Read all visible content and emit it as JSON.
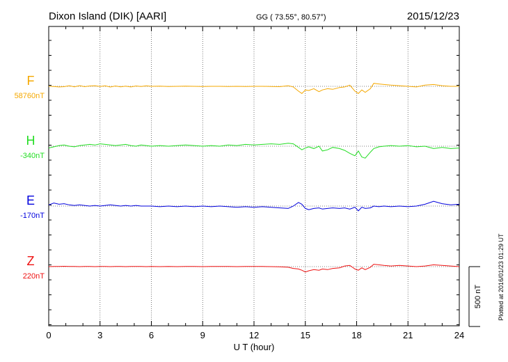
{
  "header": {
    "station": "Dixon Island (DIK)  [AARI]",
    "coords": "GG ( 73.55°,  80.57°)",
    "date": "2015/12/23"
  },
  "footer": {
    "plotted": "Plotted at 2016/01/23 01:29 UT"
  },
  "chart_data": {
    "type": "line",
    "xlabel": "U T (hour)",
    "ylabel": "",
    "xlim": [
      0,
      24
    ],
    "x_ticks": [
      "0",
      "3",
      "6",
      "9",
      "12",
      "15",
      "18",
      "21",
      "24"
    ],
    "scale_bar": {
      "label": "500 nT",
      "value_nT": 500
    },
    "grid": true,
    "series": [
      {
        "name": "F",
        "baseline_label": "58760nT",
        "color": "#f5a800",
        "x": [
          0,
          0.3,
          0.6,
          0.9,
          1.2,
          1.5,
          1.8,
          2.1,
          2.4,
          2.7,
          3.0,
          3.3,
          3.6,
          3.9,
          4.2,
          4.5,
          4.8,
          5.1,
          5.4,
          5.7,
          6.0,
          6.5,
          7,
          7.5,
          8,
          8.5,
          9,
          9.5,
          10,
          10.5,
          11,
          11.5,
          12,
          12.5,
          13,
          13.5,
          14,
          14.3,
          14.6,
          14.8,
          15,
          15.2,
          15.5,
          15.8,
          16,
          16.3,
          16.6,
          17,
          17.3,
          17.6,
          17.9,
          18.1,
          18.3,
          18.5,
          18.8,
          19,
          19.3,
          19.6,
          20,
          20.5,
          21,
          21.5,
          22,
          22.5,
          23,
          23.5,
          24
        ],
        "y": [
          0,
          -2,
          -5,
          -3,
          5,
          -4,
          6,
          -3,
          3,
          5,
          -2,
          4,
          -6,
          3,
          -4,
          2,
          -5,
          3,
          -2,
          4,
          0,
          1,
          -1,
          0,
          1,
          0,
          -1,
          0,
          0,
          -1,
          0,
          -2,
          0,
          0,
          -1,
          -3,
          5,
          -5,
          -40,
          -60,
          -30,
          -35,
          -20,
          -45,
          -30,
          -20,
          -25,
          -10,
          -5,
          10,
          -40,
          -60,
          -30,
          -50,
          -20,
          25,
          20,
          15,
          10,
          5,
          0,
          -5,
          10,
          15,
          5,
          0,
          0
        ]
      },
      {
        "name": "H",
        "baseline_label": "-340nT",
        "color": "#22dd22",
        "x": [
          0,
          0.3,
          0.6,
          0.9,
          1.2,
          1.5,
          1.8,
          2.1,
          2.4,
          2.7,
          3.0,
          3.3,
          3.6,
          3.9,
          4.2,
          4.5,
          4.8,
          5.1,
          5.4,
          5.7,
          6.0,
          6.5,
          7,
          7.5,
          8,
          8.5,
          9,
          9.5,
          10,
          10.5,
          11,
          11.5,
          12,
          12.5,
          13,
          13.5,
          14,
          14.3,
          14.6,
          14.8,
          15,
          15.2,
          15.5,
          15.8,
          16,
          16.3,
          16.6,
          17,
          17.3,
          17.6,
          17.9,
          18.1,
          18.3,
          18.5,
          18.8,
          19,
          19.3,
          19.6,
          20,
          20.5,
          21,
          21.5,
          22,
          22.5,
          23,
          23.5,
          24
        ],
        "y": [
          -15,
          -5,
          5,
          10,
          0,
          -5,
          5,
          10,
          15,
          10,
          20,
          15,
          10,
          5,
          10,
          15,
          5,
          0,
          10,
          5,
          0,
          5,
          0,
          5,
          10,
          5,
          0,
          5,
          0,
          10,
          5,
          15,
          10,
          15,
          20,
          15,
          25,
          20,
          -10,
          -30,
          -15,
          -5,
          -20,
          0,
          -40,
          -30,
          -10,
          -20,
          -35,
          -60,
          -80,
          -40,
          -90,
          -100,
          -50,
          -20,
          -5,
          0,
          5,
          0,
          5,
          -5,
          0,
          -20,
          -10,
          -20,
          -15
        ]
      },
      {
        "name": "E",
        "baseline_label": "-170nT",
        "color": "#0000dd",
        "x": [
          0,
          0.3,
          0.6,
          0.9,
          1.2,
          1.5,
          1.8,
          2.1,
          2.4,
          2.7,
          3.0,
          3.3,
          3.6,
          3.9,
          4.2,
          4.5,
          4.8,
          5.1,
          5.4,
          5.7,
          6.0,
          6.5,
          7,
          7.5,
          8,
          8.5,
          9,
          9.5,
          10,
          10.5,
          11,
          11.5,
          12,
          12.5,
          13,
          13.5,
          14,
          14.3,
          14.6,
          14.8,
          15,
          15.2,
          15.5,
          15.8,
          16,
          16.3,
          16.6,
          17,
          17.3,
          17.6,
          17.9,
          18.1,
          18.3,
          18.5,
          18.8,
          19,
          19.3,
          19.6,
          20,
          20.5,
          21,
          21.5,
          22,
          22.5,
          23,
          23.5,
          24
        ],
        "y": [
          10,
          25,
          15,
          20,
          10,
          5,
          10,
          5,
          0,
          5,
          0,
          5,
          10,
          5,
          0,
          5,
          0,
          5,
          0,
          0,
          0,
          -5,
          0,
          -5,
          0,
          -5,
          0,
          -5,
          0,
          -5,
          -10,
          -5,
          -10,
          -5,
          -10,
          -15,
          -20,
          0,
          30,
          15,
          -20,
          -30,
          -20,
          -15,
          -25,
          -20,
          -15,
          -20,
          -15,
          -25,
          -10,
          -40,
          -10,
          -20,
          -15,
          0,
          -5,
          0,
          -5,
          0,
          -5,
          0,
          15,
          40,
          20,
          10,
          15
        ]
      },
      {
        "name": "Z",
        "baseline_label": "220nT",
        "color": "#ee1111",
        "x": [
          0,
          0.3,
          0.6,
          0.9,
          1.2,
          1.5,
          1.8,
          2.1,
          2.4,
          2.7,
          3.0,
          3.3,
          3.6,
          3.9,
          4.2,
          4.5,
          4.8,
          5.1,
          5.4,
          5.7,
          6.0,
          6.5,
          7,
          7.5,
          8,
          8.5,
          9,
          9.5,
          10,
          10.5,
          11,
          11.5,
          12,
          12.5,
          13,
          13.5,
          14,
          14.3,
          14.6,
          14.8,
          15,
          15.2,
          15.5,
          15.8,
          16,
          16.3,
          16.6,
          17,
          17.3,
          17.6,
          17.9,
          18.1,
          18.3,
          18.5,
          18.8,
          19,
          19.3,
          19.6,
          20,
          20.5,
          21,
          21.5,
          22,
          22.5,
          23,
          23.5,
          24
        ],
        "y": [
          0,
          2,
          1,
          3,
          2,
          1,
          0,
          2,
          1,
          0,
          2,
          1,
          0,
          1,
          2,
          0,
          1,
          2,
          1,
          0,
          1,
          0,
          1,
          0,
          1,
          2,
          0,
          1,
          2,
          1,
          0,
          1,
          2,
          1,
          0,
          -2,
          -5,
          -15,
          -20,
          -30,
          -45,
          -35,
          -25,
          -30,
          -20,
          -25,
          -15,
          -10,
          5,
          10,
          -20,
          -30,
          -10,
          -25,
          -5,
          20,
          15,
          10,
          5,
          10,
          5,
          0,
          5,
          15,
          10,
          5,
          0
        ]
      }
    ]
  }
}
